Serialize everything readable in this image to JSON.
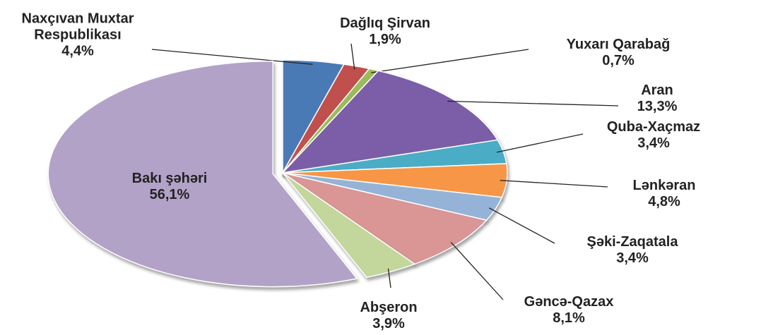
{
  "chart_data": {
    "type": "pie",
    "categories": [
      "Naxçıvan Muxtar Respublikası",
      "Dağlıq Şirvan",
      "Yuxarı Qarabağ",
      "Aran",
      "Quba-Xaçmaz",
      "Lənkəran",
      "Şəki-Zaqatala",
      "Gəncə-Qazax",
      "Abşeron",
      "Bakı şəhəri"
    ],
    "values": [
      4.4,
      1.9,
      0.7,
      13.3,
      3.4,
      4.8,
      3.4,
      8.1,
      3.9,
      56.1
    ],
    "value_labels": [
      "4,4%",
      "1,9%",
      "0,7%",
      "13,3%",
      "3,4%",
      "4,8%",
      "3,4%",
      "8,1%",
      "3,9%",
      "56,1%"
    ],
    "colors": [
      "#4a7ab5",
      "#c0504d",
      "#9bbb59",
      "#7b5ea7",
      "#4bacc6",
      "#f79646",
      "#95b3d7",
      "#d99694",
      "#c3d69b",
      "#b3a2c7"
    ]
  }
}
